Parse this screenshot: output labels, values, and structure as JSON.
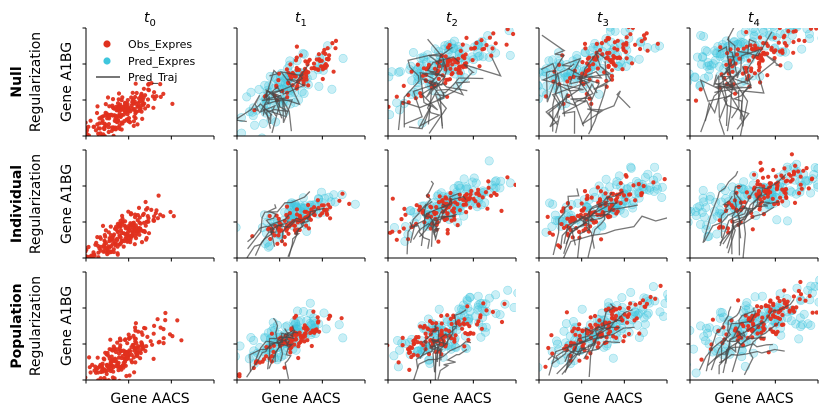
{
  "figure": {
    "row_labels": [
      {
        "bold": "Null",
        "sub": "Regularization"
      },
      {
        "bold": "Individual",
        "sub": "Regularization"
      },
      {
        "bold": "Population",
        "sub": "Regularization"
      }
    ],
    "column_titles": [
      {
        "base": "t",
        "sub": "0"
      },
      {
        "base": "t",
        "sub": "1"
      },
      {
        "base": "t",
        "sub": "2"
      },
      {
        "base": "t",
        "sub": "3"
      },
      {
        "base": "t",
        "sub": "4"
      }
    ],
    "xlabel": "Gene AACS",
    "ylabel": "Gene A1BG",
    "colors": {
      "observed": "#e0301e",
      "predicted": "#3fc6dd",
      "trajectory": "#4a4a4a",
      "axis": "#000000"
    }
  },
  "legend": {
    "items": [
      {
        "label": "Obs_Expres",
        "kind": "dot",
        "color": "#e0301e"
      },
      {
        "label": "Pred_Expres",
        "kind": "dot",
        "color": "#3fc6dd"
      },
      {
        "label": "Pred_Traj",
        "kind": "line",
        "color": "#4a4a4a"
      }
    ]
  },
  "chart_data": {
    "type": "scatter",
    "description_series": [
      "Obs_Expres",
      "Pred_Expres",
      "Pred_Traj"
    ],
    "xlabel": "Gene AACS",
    "ylabel": "Gene A1BG",
    "xlim": [
      0,
      3
    ],
    "ylim": [
      0,
      3
    ],
    "panels": [
      {
        "row": "Null",
        "col": "t0",
        "obs": {
          "cx": 0.8,
          "cy": 0.6,
          "sx": 0.45,
          "sy": 0.4,
          "n": 220
        },
        "pred": null,
        "traj": 0
      },
      {
        "row": "Null",
        "col": "t1",
        "obs": {
          "cx": 1.6,
          "cy": 1.75,
          "sx": 0.45,
          "sy": 0.4,
          "n": 90
        },
        "pred": {
          "cx": 1.1,
          "cy": 1.3,
          "sx": 0.5,
          "sy": 0.45,
          "n": 110
        },
        "traj": 8
      },
      {
        "row": "Null",
        "col": "t2",
        "obs": {
          "cx": 1.5,
          "cy": 2.0,
          "sx": 0.6,
          "sy": 0.45,
          "n": 100
        },
        "pred": {
          "cx": 1.2,
          "cy": 1.9,
          "sx": 0.7,
          "sy": 0.5,
          "n": 120
        },
        "traj": 10
      },
      {
        "row": "Null",
        "col": "t3",
        "obs": {
          "cx": 1.5,
          "cy": 2.1,
          "sx": 0.6,
          "sy": 0.5,
          "n": 100
        },
        "pred": {
          "cx": 1.0,
          "cy": 1.9,
          "sx": 0.8,
          "sy": 0.55,
          "n": 130
        },
        "traj": 12
      },
      {
        "row": "Null",
        "col": "t4",
        "obs": {
          "cx": 1.6,
          "cy": 2.2,
          "sx": 0.6,
          "sy": 0.5,
          "n": 100
        },
        "pred": {
          "cx": 1.3,
          "cy": 2.4,
          "sx": 0.9,
          "sy": 0.55,
          "n": 150
        },
        "traj": 12
      },
      {
        "row": "Individual",
        "col": "t0",
        "obs": {
          "cx": 0.8,
          "cy": 0.6,
          "sx": 0.45,
          "sy": 0.4,
          "n": 220
        },
        "pred": null,
        "traj": 0
      },
      {
        "row": "Individual",
        "col": "t1",
        "obs": {
          "cx": 1.4,
          "cy": 1.05,
          "sx": 0.45,
          "sy": 0.3,
          "n": 90
        },
        "pred": {
          "cx": 1.5,
          "cy": 1.25,
          "sx": 0.45,
          "sy": 0.35,
          "n": 90
        },
        "traj": 8
      },
      {
        "row": "Individual",
        "col": "t2",
        "obs": {
          "cx": 1.3,
          "cy": 1.3,
          "sx": 0.6,
          "sy": 0.4,
          "n": 110
        },
        "pred": {
          "cx": 1.5,
          "cy": 1.5,
          "sx": 0.55,
          "sy": 0.4,
          "n": 110
        },
        "traj": 10
      },
      {
        "row": "Individual",
        "col": "t3",
        "obs": {
          "cx": 1.4,
          "cy": 1.4,
          "sx": 0.6,
          "sy": 0.45,
          "n": 110
        },
        "pred": {
          "cx": 1.7,
          "cy": 1.6,
          "sx": 0.7,
          "sy": 0.45,
          "n": 120
        },
        "traj": 10
      },
      {
        "row": "Individual",
        "col": "t4",
        "obs": {
          "cx": 1.9,
          "cy": 1.8,
          "sx": 0.6,
          "sy": 0.45,
          "n": 110
        },
        "pred": {
          "cx": 1.7,
          "cy": 1.75,
          "sx": 0.95,
          "sy": 0.45,
          "n": 150
        },
        "traj": 12
      },
      {
        "row": "Population",
        "col": "t0",
        "obs": {
          "cx": 0.8,
          "cy": 0.6,
          "sx": 0.45,
          "sy": 0.4,
          "n": 220
        },
        "pred": null,
        "traj": 0
      },
      {
        "row": "Population",
        "col": "t1",
        "obs": {
          "cx": 1.3,
          "cy": 1.1,
          "sx": 0.45,
          "sy": 0.35,
          "n": 90
        },
        "pred": {
          "cx": 1.2,
          "cy": 1.2,
          "sx": 0.5,
          "sy": 0.4,
          "n": 110
        },
        "traj": 8
      },
      {
        "row": "Population",
        "col": "t2",
        "obs": {
          "cx": 1.3,
          "cy": 1.3,
          "sx": 0.6,
          "sy": 0.4,
          "n": 110
        },
        "pred": {
          "cx": 1.5,
          "cy": 1.4,
          "sx": 0.6,
          "sy": 0.45,
          "n": 120
        },
        "traj": 10
      },
      {
        "row": "Population",
        "col": "t3",
        "obs": {
          "cx": 1.4,
          "cy": 1.4,
          "sx": 0.6,
          "sy": 0.45,
          "n": 110
        },
        "pred": {
          "cx": 1.6,
          "cy": 1.5,
          "sx": 0.7,
          "sy": 0.5,
          "n": 130
        },
        "traj": 10
      },
      {
        "row": "Population",
        "col": "t4",
        "obs": {
          "cx": 1.8,
          "cy": 1.75,
          "sx": 0.6,
          "sy": 0.45,
          "n": 110
        },
        "pred": {
          "cx": 1.6,
          "cy": 1.6,
          "sx": 0.9,
          "sy": 0.5,
          "n": 150
        },
        "traj": 12
      }
    ]
  }
}
